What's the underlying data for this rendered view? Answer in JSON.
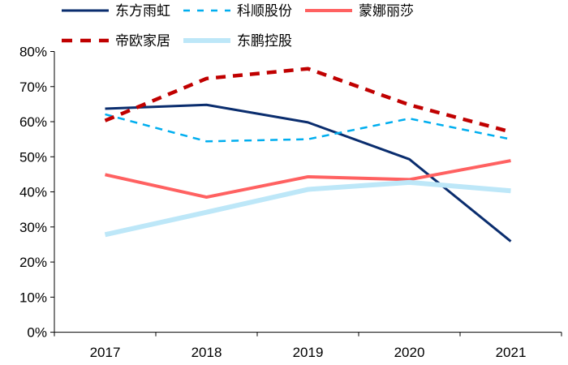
{
  "chart_data": {
    "type": "line",
    "title": "",
    "xlabel": "",
    "ylabel": "",
    "categories": [
      "2017",
      "2018",
      "2019",
      "2020",
      "2021"
    ],
    "ylim": [
      0,
      80
    ],
    "yticks": [
      "0%",
      "10%",
      "20%",
      "30%",
      "40%",
      "50%",
      "60%",
      "70%",
      "80%"
    ],
    "grid": false,
    "legend_placement": "top",
    "series": [
      {
        "name": "东方雨虹",
        "values": [
          63.7,
          64.8,
          59.8,
          49.3,
          25.9
        ],
        "color": "#0a2d6e",
        "style": "solid"
      },
      {
        "name": "科顺股份",
        "values": [
          62.1,
          54.4,
          55.0,
          60.9,
          55.0
        ],
        "color": "#00aeef",
        "style": "dashed"
      },
      {
        "name": "蒙娜丽莎",
        "values": [
          44.9,
          38.5,
          44.3,
          43.5,
          48.9
        ],
        "color": "#ff6161",
        "style": "solid"
      },
      {
        "name": "帝欧家居",
        "values": [
          60.3,
          72.3,
          75.1,
          64.8,
          57.1
        ],
        "color": "#c00000",
        "style": "dashed"
      },
      {
        "name": "东鹏控股",
        "values": [
          27.8,
          34.2,
          40.7,
          42.7,
          40.3
        ],
        "color": "#bde7f8",
        "style": "solid"
      }
    ]
  }
}
